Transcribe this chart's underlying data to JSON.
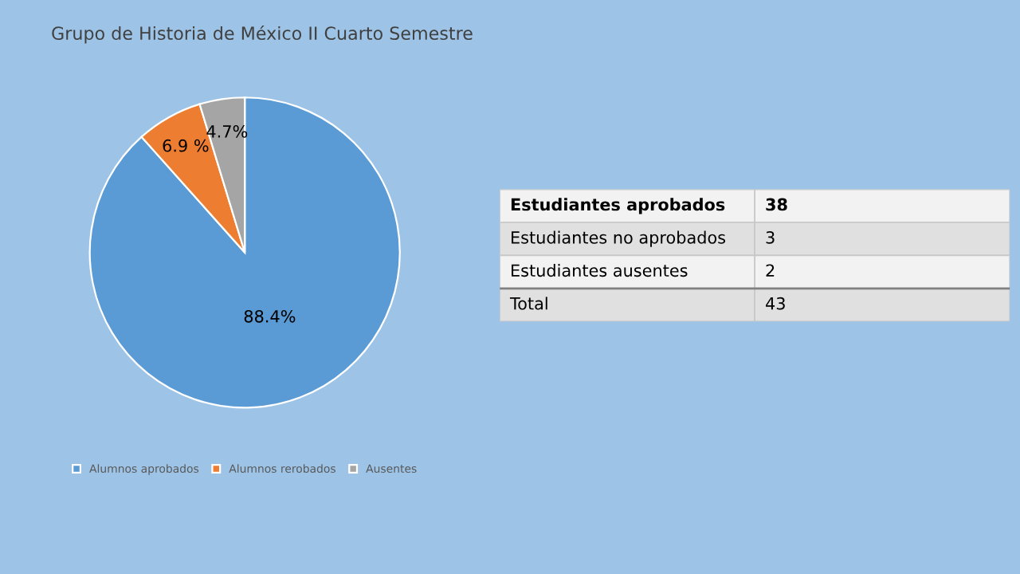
{
  "chart_data": [
    {
      "type": "pie",
      "title": "Grupo de Historia de México II Cuarto Semestre",
      "categories": [
        "Alumnos aprobados",
        "Alumnos rerobados",
        "Ausentes"
      ],
      "values": [
        88.4,
        6.9,
        4.7
      ],
      "colors": [
        "#5b9bd5",
        "#ed7d31",
        "#a5a5a5"
      ],
      "value_labels": [
        "88.4%",
        "6.9 %",
        "4.7%"
      ],
      "legend": "bottom"
    },
    {
      "type": "other",
      "categories": [
        "Estudiantes aprobados",
        "Estudiantes no aprobados",
        "Estudiantes ausentes",
        "Total"
      ],
      "values": [
        38,
        3,
        2,
        43
      ],
      "data_labels": true
    }
  ]
}
